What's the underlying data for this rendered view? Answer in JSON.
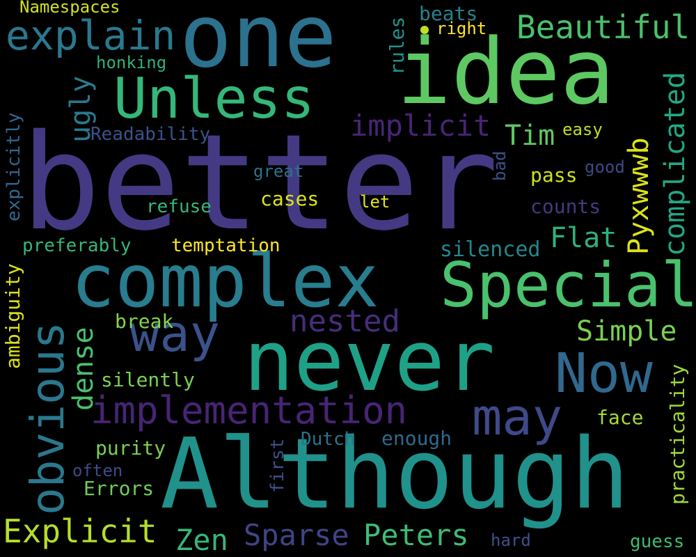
{
  "words": {
    "better": {
      "text": "better",
      "color": "#443a83"
    },
    "one": {
      "text": "one",
      "color": "#2c728e"
    },
    "idea": {
      "text": "idea",
      "color": "#5ec962"
    },
    "although": {
      "text": "Although",
      "color": "#21918c"
    },
    "complex": {
      "text": "complex",
      "color": "#287d8e"
    },
    "never": {
      "text": "never",
      "color": "#1fa187"
    },
    "special": {
      "text": "Special",
      "color": "#4ac16d"
    },
    "unless": {
      "text": "Unless",
      "color": "#35b779"
    },
    "explain": {
      "text": "explain",
      "color": "#2a788e"
    },
    "way": {
      "text": "way",
      "color": "#3b528b"
    },
    "now": {
      "text": "Now",
      "color": "#31688e"
    },
    "may": {
      "text": "may",
      "color": "#3e4a89"
    },
    "implementation": {
      "text": "implementation",
      "color": "#482475"
    },
    "beautiful": {
      "text": "Beautiful",
      "color": "#4ac16d"
    },
    "implicit": {
      "text": "implicit",
      "color": "#482576"
    },
    "tim": {
      "text": "Tim",
      "color": "#5ec962"
    },
    "flat": {
      "text": "Flat",
      "color": "#2db27d"
    },
    "nested": {
      "text": "nested",
      "color": "#472d7b"
    },
    "simple": {
      "text": "Simple",
      "color": "#7ad151"
    },
    "explicit": {
      "text": "Explicit",
      "color": "#b5de2b"
    },
    "zen": {
      "text": "Zen",
      "color": "#35b779"
    },
    "sparse": {
      "text": "Sparse",
      "color": "#414487"
    },
    "peters": {
      "text": "Peters",
      "color": "#3fbc73"
    },
    "readability": {
      "text": "Readability",
      "color": "#3b528b"
    },
    "refuse": {
      "text": "refuse",
      "color": "#35b779"
    },
    "cases": {
      "text": "cases",
      "color": "#dde318"
    },
    "great": {
      "text": "great",
      "color": "#2c728e"
    },
    "let": {
      "text": "let",
      "color": "#e5e419"
    },
    "easy": {
      "text": "easy",
      "color": "#bddf26"
    },
    "good": {
      "text": "good",
      "color": "#3e4a89"
    },
    "pass": {
      "text": "pass",
      "color": "#d2e21b"
    },
    "counts": {
      "text": "counts",
      "color": "#443983"
    },
    "silenced": {
      "text": "silenced",
      "color": "#23888e"
    },
    "preferably": {
      "text": "preferably",
      "color": "#35b779"
    },
    "temptation": {
      "text": "temptation",
      "color": "#fde725"
    },
    "break": {
      "text": "break",
      "color": "#84d44b"
    },
    "silently": {
      "text": "silently",
      "color": "#7ad151"
    },
    "face": {
      "text": "face",
      "color": "#a5db36"
    },
    "purity": {
      "text": "purity",
      "color": "#7ad151"
    },
    "dutch": {
      "text": "Dutch",
      "color": "#2c728e"
    },
    "enough": {
      "text": "enough",
      "color": "#31688e"
    },
    "often": {
      "text": "often",
      "color": "#3e4a89"
    },
    "errors": {
      "text": "Errors",
      "color": "#6ece58"
    },
    "hard": {
      "text": "hard",
      "color": "#3b528b"
    },
    "guess": {
      "text": "guess",
      "color": "#3fbc73"
    },
    "namespaces": {
      "text": "Namespaces",
      "color": "#d2e21b"
    },
    "honking": {
      "text": "honking",
      "color": "#2db27d"
    },
    "beats": {
      "text": "beats",
      "color": "#26828e"
    },
    "right": {
      "text": "right",
      "color": "#fde725"
    },
    "obvious": {
      "text": "obvious",
      "color": "#2a788e"
    },
    "dense": {
      "text": "dense",
      "color": "#4ac16d"
    },
    "ugly": {
      "text": "ugly",
      "color": "#2a788e"
    },
    "explicitly": {
      "text": "explicitly",
      "color": "#31688e"
    },
    "ambiguity": {
      "text": "ambiguity",
      "color": "#dde318"
    },
    "rules": {
      "text": "rules",
      "color": "#20928c"
    },
    "pyxwwwb": {
      "text": "Pyxwwwb",
      "color": "#dde318"
    },
    "complicated": {
      "text": "complicated",
      "color": "#22a884"
    },
    "bad": {
      "text": "bad",
      "color": "#3b528b"
    },
    "practicality": {
      "text": "practicality",
      "color": "#a0da39"
    },
    "first": {
      "text": "first",
      "color": "#3b528b"
    }
  },
  "dot_color": "#bddf26"
}
